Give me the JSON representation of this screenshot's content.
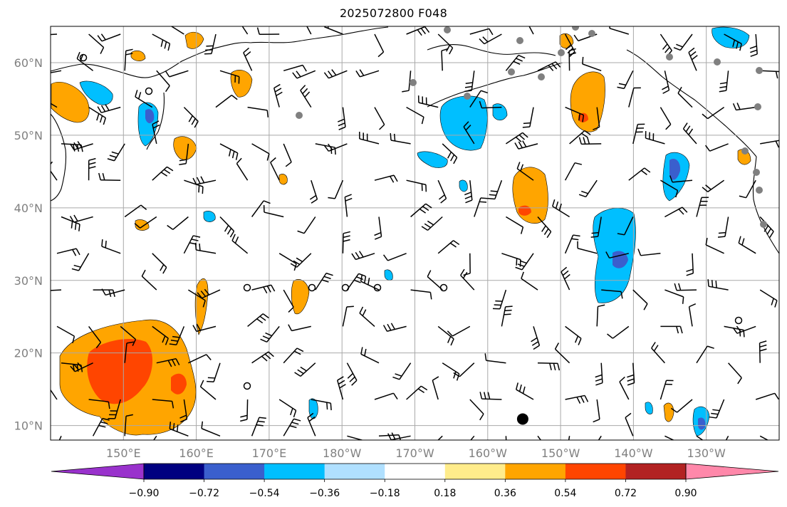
{
  "title": "2025072800 F048",
  "map": {
    "projection": "PlateCarree",
    "lon_range": [
      140,
      240
    ],
    "lat_range": [
      8,
      65
    ],
    "lat_ticks": [
      {
        "value": 10,
        "label": "10°N"
      },
      {
        "value": 20,
        "label": "20°N"
      },
      {
        "value": 30,
        "label": "30°N"
      },
      {
        "value": 40,
        "label": "40°N"
      },
      {
        "value": 50,
        "label": "50°N"
      },
      {
        "value": 60,
        "label": "60°N"
      }
    ],
    "lon_ticks": [
      {
        "value": 150,
        "label": "150°E"
      },
      {
        "value": 160,
        "label": "160°E"
      },
      {
        "value": 170,
        "label": "170°E"
      },
      {
        "value": 180,
        "label": "180°W"
      },
      {
        "value": 190,
        "label": "170°W"
      },
      {
        "value": 200,
        "label": "160°W"
      },
      {
        "value": 210,
        "label": "150°W"
      },
      {
        "value": 220,
        "label": "140°W"
      },
      {
        "value": 230,
        "label": "130°W"
      }
    ],
    "gridlines": true,
    "tick_label_color": "#808080",
    "large_marker": {
      "lon": 204.8,
      "lat": 10.9,
      "color": "#000000"
    }
  },
  "colorbar": {
    "extend": "both",
    "bounds": [
      -0.9,
      -0.72,
      -0.54,
      -0.36,
      -0.18,
      0.18,
      0.36,
      0.54,
      0.72,
      0.9
    ],
    "labels": [
      "−0.90",
      "−0.72",
      "−0.54",
      "−0.36",
      "−0.18",
      "0.18",
      "0.36",
      "0.54",
      "0.72",
      "0.90"
    ],
    "colors": [
      "#9932cc",
      "#000080",
      "#3a5fcd",
      "#00bfff",
      "#b0e0ff",
      "#ffffff",
      "#ffec8b",
      "#ffa500",
      "#ff4500",
      "#b22222",
      "#ff88aa"
    ]
  }
}
